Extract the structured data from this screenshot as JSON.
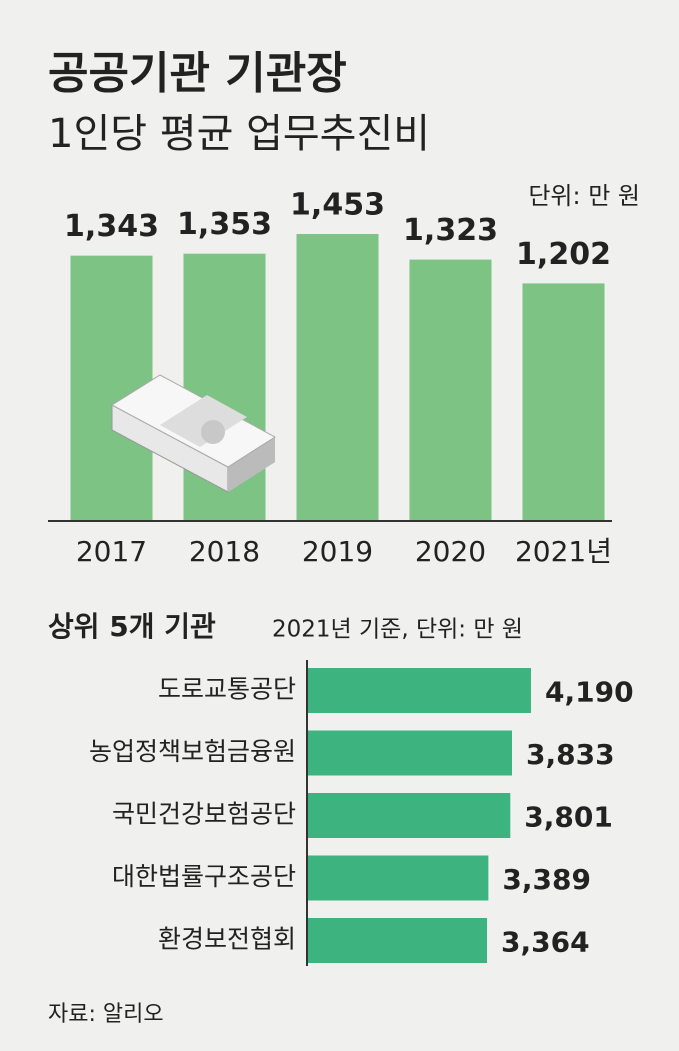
{
  "title": "공공기관 기관장",
  "subtitle": "1인당 평균 업무추진비",
  "source": "자료: 알리오",
  "chart_data": [
    {
      "type": "bar",
      "unit": "단위: 만 원",
      "categories": [
        "2017",
        "2018",
        "2019",
        "2020",
        "2021년"
      ],
      "values": [
        1343,
        1353,
        1453,
        1323,
        1202
      ],
      "value_labels": [
        "1,343",
        "1,353",
        "1,453",
        "1,323",
        "1,202"
      ],
      "color": "#7dc383"
    },
    {
      "type": "hbar",
      "title": "상위 5개 기관",
      "subtitle": "2021년 기준, 단위: 만 원",
      "categories": [
        "도로교통공단",
        "농업정책보험금융원",
        "국민건강보험공단",
        "대한법률구조공단",
        "환경보전협회"
      ],
      "values": [
        4190,
        3833,
        3801,
        3389,
        3364
      ],
      "value_labels": [
        "4,190",
        "3,833",
        "3,801",
        "3,389",
        "3,364"
      ],
      "color": "#3db37f"
    }
  ]
}
